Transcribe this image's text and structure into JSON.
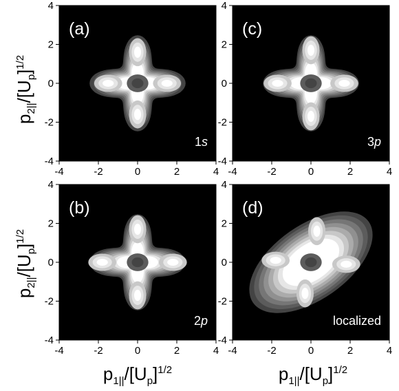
{
  "chart_data": [
    {
      "type": "heatmap",
      "panel_label": "(a)",
      "state_label_prefix": "1",
      "state_label_italic": "s",
      "shape": "star",
      "xlim": [
        -4,
        4
      ],
      "ylim": [
        -4,
        4
      ],
      "x_ticks": [
        "-4",
        "-2",
        "0",
        "2",
        "4"
      ],
      "y_ticks": [
        "4",
        "2",
        "0",
        "-2",
        "-4"
      ],
      "peaks": [
        {
          "x": 0.0,
          "y": 1.6,
          "level": 1.0
        },
        {
          "x": 0.0,
          "y": -1.6,
          "level": 1.0
        },
        {
          "x": -1.5,
          "y": 0.0,
          "level": 0.95
        },
        {
          "x": 1.5,
          "y": 0.0,
          "level": 0.95
        }
      ],
      "center_dip": {
        "x": 0.0,
        "y": 0.0,
        "level": 0.45
      }
    },
    {
      "type": "heatmap",
      "panel_label": "(c)",
      "state_label_prefix": "3",
      "state_label_italic": "p",
      "shape": "star",
      "xlim": [
        -4,
        4
      ],
      "ylim": [
        -4,
        4
      ],
      "x_ticks": [
        "-4",
        "-2",
        "0",
        "2",
        "4"
      ],
      "y_ticks": [
        "4",
        "2",
        "0",
        "-2",
        "-4"
      ],
      "peaks": [
        {
          "x": 0.0,
          "y": 1.7,
          "level": 1.0
        },
        {
          "x": 0.0,
          "y": -1.7,
          "level": 1.0
        },
        {
          "x": -1.7,
          "y": 0.0,
          "level": 1.0
        },
        {
          "x": 1.7,
          "y": 0.0,
          "level": 1.0
        }
      ],
      "center_dip": {
        "x": 0.0,
        "y": 0.0,
        "level": 0.5
      }
    },
    {
      "type": "heatmap",
      "panel_label": "(b)",
      "state_label_prefix": "2",
      "state_label_italic": "p",
      "shape": "star",
      "xlim": [
        -4,
        4
      ],
      "ylim": [
        -4,
        4
      ],
      "x_ticks": [
        "-4",
        "-2",
        "0",
        "2",
        "4"
      ],
      "y_ticks": [
        "4",
        "2",
        "0",
        "-2",
        "-4"
      ],
      "peaks": [
        {
          "x": 0.0,
          "y": 1.7,
          "level": 1.0
        },
        {
          "x": 0.0,
          "y": -1.7,
          "level": 1.0
        },
        {
          "x": -1.8,
          "y": 0.0,
          "level": 1.0
        },
        {
          "x": 1.8,
          "y": 0.0,
          "level": 1.0
        }
      ],
      "center_dip": {
        "x": 0.0,
        "y": 0.0,
        "level": 0.5
      }
    },
    {
      "type": "heatmap",
      "panel_label": "(d)",
      "state_label_prefix": "localized",
      "state_label_italic": "",
      "shape": "diagonal-hourglass",
      "xlim": [
        -4,
        4
      ],
      "ylim": [
        -4,
        4
      ],
      "x_ticks": [
        "-4",
        "-2",
        "0",
        "2",
        "4"
      ],
      "y_ticks": [
        "4",
        "2",
        "0",
        "-2",
        "-4"
      ],
      "peaks": [
        {
          "x": 0.3,
          "y": 1.6,
          "level": 1.0
        },
        {
          "x": -0.3,
          "y": -1.6,
          "level": 1.0
        },
        {
          "x": -1.8,
          "y": 0.1,
          "level": 0.95
        },
        {
          "x": 1.8,
          "y": -0.1,
          "level": 0.95
        }
      ],
      "center_dip": {
        "x": 0.0,
        "y": 0.0,
        "level": 0.4
      }
    }
  ],
  "axes": {
    "y_title": {
      "main": "p",
      "sub": "2||",
      "mid": "/[U",
      "sub2": "p",
      "close": "]",
      "sup": "1/2"
    },
    "x_title": {
      "main": "p",
      "sub": "1||",
      "mid": "/[U",
      "sub2": "p",
      "close": "]",
      "sup": "1/2"
    }
  },
  "colors": {
    "background": "#000000",
    "levels": [
      "#1a1a1a",
      "#2e2e2e",
      "#444444",
      "#5c5c5c",
      "#767676",
      "#909090",
      "#ababab",
      "#c8c8c8",
      "#e6e6e6",
      "#ffffff"
    ]
  }
}
